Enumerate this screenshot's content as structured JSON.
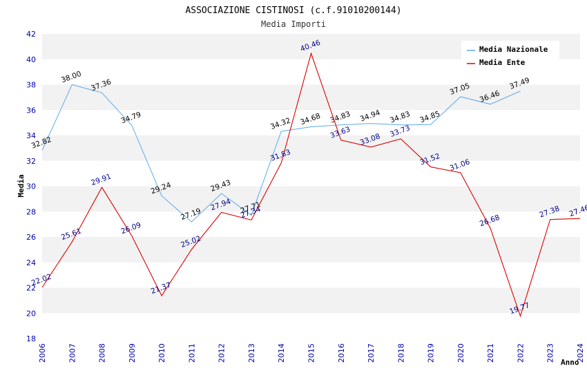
{
  "chart_data": {
    "type": "line",
    "title": "ASSOCIAZIONE CISTINOSI (c.f.91010200144)",
    "subtitle": "Media Importi",
    "xlabel": "Anno",
    "ylabel": "Media",
    "categories": [
      "2006",
      "2007",
      "2008",
      "2009",
      "2010",
      "2011",
      "2012",
      "2013",
      "2014",
      "2015",
      "2016",
      "2017",
      "2018",
      "2019",
      "2020",
      "2021",
      "2022",
      "2023",
      "2024"
    ],
    "ylim": [
      18,
      42
    ],
    "yticks": [
      "18",
      "20",
      "22",
      "24",
      "26",
      "28",
      "30",
      "32",
      "34",
      "36",
      "38",
      "40",
      "42"
    ],
    "grid": "horizontal alternating bands",
    "legend_position": "top-right",
    "series": [
      {
        "name": "Media Nazionale",
        "color": "#5aaaee",
        "label_color": "#000000",
        "values": [
          32.82,
          38.0,
          37.36,
          34.79,
          29.24,
          27.19,
          29.43,
          27.71,
          34.32,
          34.68,
          34.83,
          34.94,
          34.83,
          34.85,
          37.05,
          36.46,
          37.49,
          null,
          null
        ],
        "labels": [
          "32.82",
          "38.00",
          "37.36",
          "34.79",
          "29.24",
          "27.19",
          "29.43",
          "27.71",
          "34.32",
          "34.68",
          "34.83",
          "34.94",
          "34.83",
          "34.85",
          "37.05",
          "36.46",
          "37.49",
          null,
          null
        ]
      },
      {
        "name": "Media Ente",
        "color": "#dd0000",
        "label_color": "#000088",
        "values": [
          22.02,
          25.61,
          29.91,
          26.09,
          21.37,
          25.02,
          27.94,
          27.34,
          31.83,
          40.46,
          33.63,
          33.08,
          33.73,
          31.52,
          31.06,
          26.68,
          19.77,
          27.38,
          27.46
        ],
        "labels": [
          "22.02",
          "25.61",
          "29.91",
          "26.09",
          "21.37",
          "25.02",
          "27.94",
          "27.34",
          "31.83",
          "40.46",
          "33.63",
          "33.08",
          "33.73",
          "31.52",
          "31.06",
          "26.68",
          "19.77",
          "27.38",
          "27.46"
        ]
      }
    ]
  }
}
